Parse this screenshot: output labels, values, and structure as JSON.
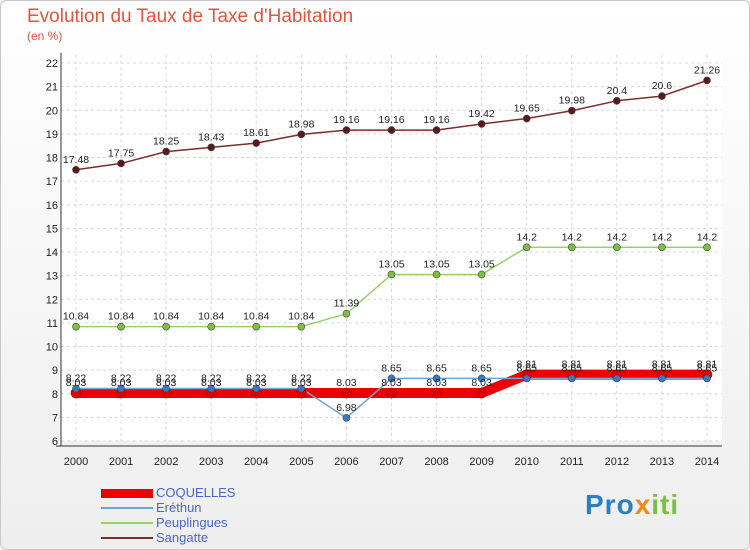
{
  "header": {
    "title": "Evolution du Taux de Taxe d'Habitation",
    "subtitle": "(en %)"
  },
  "logo": {
    "text": "Proxiti",
    "parts": [
      "Pro",
      "x",
      "iti"
    ]
  },
  "chart_data": {
    "type": "line",
    "title": "Evolution du Taux de Taxe d'Habitation",
    "ylabel": "(en %)",
    "xlabel": "",
    "ylim": [
      6,
      22
    ],
    "grid": true,
    "legend_position": "bottom-left",
    "x": [
      "2000",
      "2001",
      "2002",
      "2003",
      "2004",
      "2005",
      "2006",
      "2007",
      "2008",
      "2009",
      "2010",
      "2011",
      "2012",
      "2013",
      "2014"
    ],
    "y_ticks": [
      "6",
      "7",
      "8",
      "9",
      "10",
      "11",
      "12",
      "13",
      "14",
      "15",
      "16",
      "17",
      "18",
      "19",
      "20",
      "21",
      "22"
    ],
    "series": [
      {
        "name": "COQUELLES",
        "color": "#ee0000",
        "values": [
          8.03,
          8.03,
          8.03,
          8.03,
          8.03,
          8.03,
          8.03,
          8.03,
          8.03,
          8.03,
          8.81,
          8.81,
          8.81,
          8.81,
          8.81
        ],
        "labels": [
          "8.03",
          "8.03",
          "8.03",
          "8.03",
          "8.03",
          "8.03",
          "8.03",
          "8.03",
          "8.03",
          "8.03",
          "8.81",
          "8.81",
          "8.81",
          "8.81",
          "8.81"
        ]
      },
      {
        "name": "Eréthun",
        "color": "#6fa3d2",
        "values": [
          8.22,
          8.22,
          8.22,
          8.22,
          8.22,
          8.22,
          6.98,
          8.65,
          8.65,
          8.65,
          8.65,
          8.65,
          8.65,
          8.65,
          8.65
        ],
        "labels": [
          "8.22",
          "8.22",
          "8.22",
          "8.22",
          "8.22",
          "8.22",
          "6.98",
          "8.65",
          "8.65",
          "8.65",
          "8.65",
          "8.65",
          "8.65",
          "8.65",
          "8.65"
        ]
      },
      {
        "name": "Peuplingues",
        "color": "#9ad06a",
        "values": [
          10.84,
          10.84,
          10.84,
          10.84,
          10.84,
          10.84,
          11.39,
          13.05,
          13.05,
          13.05,
          14.2,
          14.2,
          14.2,
          14.2,
          14.2
        ],
        "labels": [
          "10.84",
          "10.84",
          "10.84",
          "10.84",
          "10.84",
          "10.84",
          "11.39",
          "13.05",
          "13.05",
          "13.05",
          "14.2",
          "14.2",
          "14.2",
          "14.2",
          "14.2"
        ]
      },
      {
        "name": "Sangatte",
        "color": "#7a2e2e",
        "values": [
          17.48,
          17.75,
          18.25,
          18.43,
          18.61,
          18.98,
          19.16,
          19.16,
          19.16,
          19.42,
          19.65,
          19.98,
          20.4,
          20.6,
          21.26
        ],
        "labels": [
          "17.48",
          "17.75",
          "18.25",
          "18.43",
          "18.61",
          "18.98",
          "19.16",
          "19.16",
          "19.16",
          "19.42",
          "19.65",
          "19.98",
          "20.4",
          "20.6",
          "21.26"
        ]
      }
    ]
  }
}
